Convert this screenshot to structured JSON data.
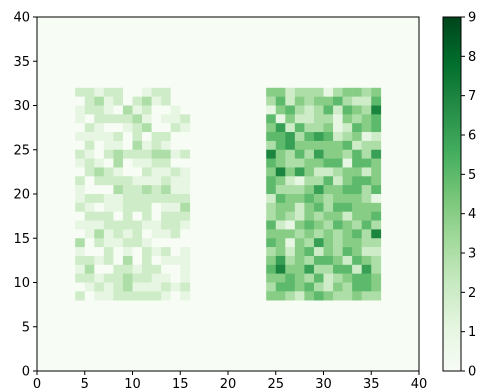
{
  "chart_data": {
    "type": "heatmap",
    "title": "",
    "xlabel": "",
    "ylabel": "",
    "xlim": [
      0,
      40
    ],
    "ylim": [
      0,
      40
    ],
    "xticks": [
      "0",
      "5",
      "10",
      "15",
      "20",
      "25",
      "30",
      "35",
      "40"
    ],
    "yticks": [
      "0",
      "5",
      "10",
      "15",
      "20",
      "25",
      "30",
      "35",
      "40"
    ],
    "colormap": "Greens",
    "vmin": 0,
    "vmax": 9,
    "colorbar_ticks": [
      "0",
      "1",
      "2",
      "3",
      "4",
      "5",
      "6",
      "7",
      "8",
      "9"
    ],
    "grid": false,
    "background_value": 0,
    "blocks": [
      {
        "x_start": 4,
        "y_start": 8,
        "rows_top_to_bottom": [
          "221220012200",
          "023120231200",
          "122103120010",
          "102222310112",
          "021001230021",
          "111120202200",
          "020110312100",
          "210232223312",
          "121030112200",
          "023210021121",
          "202222111211",
          "100032232311",
          "122112222222",
          "210112220113",
          "022202020222",
          "111222211221",
          "013121201120",
          "302112210000",
          "100201021201",
          "221203020111",
          "130022122001",
          "221223221101",
          "012123111212",
          "201122222101"
        ]
      },
      {
        "x_start": 24,
        "y_start": 8,
        "rows_top_to_bottom": [
          "442333134434",
          "352434453225",
          "145323525437",
          "514223314345",
          "462533412545",
          "556356523412",
          "356444445233",
          "743536443536",
          "543344551554",
          "474642234424",
          "542133524554",
          "533346445535",
          "254454344431",
          "344245355444",
          "343243442445",
          "521454354353",
          "444343434537",
          "541436434433",
          "342452435422",
          "463435542543",
          "574463355263",
          "445435234554",
          "355453243554",
          "443245433433"
        ]
      }
    ]
  }
}
